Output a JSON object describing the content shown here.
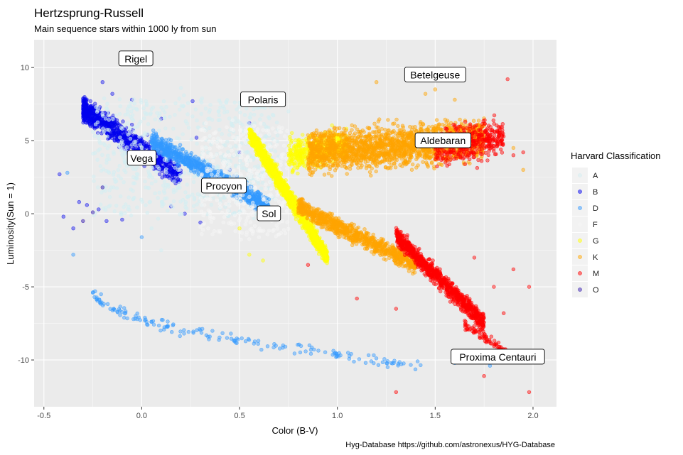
{
  "chart_data": {
    "type": "scatter",
    "title": "Hertzsprung-Russell",
    "subtitle": "Main sequence stars within 1000 ly from sun",
    "xlabel": "Color (B-V)",
    "ylabel": "Luminosity(Sun = 1)",
    "caption": "Hyg-Database https://github.com/astronexus/HYG-Database",
    "xlim": [
      -0.55,
      2.12
    ],
    "ylim": [
      -13.2,
      11.9
    ],
    "x_ticks": [
      -0.5,
      0.0,
      0.5,
      1.0,
      1.5,
      2.0
    ],
    "x_tick_labels": [
      "-0.5",
      "0.0",
      "0.5",
      "1.0",
      "1.5",
      "2.0"
    ],
    "y_ticks": [
      -10,
      -5,
      0,
      5,
      10
    ],
    "y_tick_labels": [
      "-10",
      "-5",
      "0",
      "5",
      "10"
    ],
    "grid": true,
    "legend_position": "right",
    "legend": {
      "title": "Harvard Classification",
      "items": [
        {
          "label": "A",
          "color": "#d4eef2"
        },
        {
          "label": "B",
          "color": "#0000ee"
        },
        {
          "label": "D",
          "color": "#3399ff"
        },
        {
          "label": "F",
          "color": "#f5f5f5"
        },
        {
          "label": "G",
          "color": "#ffff00"
        },
        {
          "label": "K",
          "color": "#ffa500"
        },
        {
          "label": "M",
          "color": "#ff0000"
        },
        {
          "label": "O",
          "color": "#3a1fb0"
        }
      ]
    },
    "annotations": [
      {
        "label": "Rigel",
        "x": -0.03,
        "y": 10.6
      },
      {
        "label": "Betelgeuse",
        "x": 1.5,
        "y": 9.5
      },
      {
        "label": "Polaris",
        "x": 0.62,
        "y": 7.8
      },
      {
        "label": "Aldebaran",
        "x": 1.54,
        "y": 5.0
      },
      {
        "label": "Vega",
        "x": 0.0,
        "y": 3.8
      },
      {
        "label": "Procyon",
        "x": 0.42,
        "y": 1.9
      },
      {
        "label": "Sol",
        "x": 0.65,
        "y": 0.0
      },
      {
        "label": "Proxima Centauri",
        "x": 1.82,
        "y": -9.8
      }
    ],
    "series": [
      {
        "name": "B",
        "color": "#0000ee",
        "alpha": 0.4,
        "clusters": [
          {
            "x": [
              -0.3,
              0.2
            ],
            "y": [
              1.0,
              8.8
            ],
            "count": 900,
            "profile": "upper-left-diagonal"
          }
        ],
        "points": [
          [
            -0.32,
            0.8
          ],
          [
            -0.35,
            -1.0
          ],
          [
            -0.4,
            -0.2
          ],
          [
            -0.28,
            0.6
          ],
          [
            -0.22,
            0.3
          ],
          [
            -0.18,
            -0.5
          ],
          [
            -0.1,
            -0.4
          ],
          [
            0.15,
            0.5
          ],
          [
            0.22,
            0.0
          ],
          [
            0.3,
            -0.6
          ],
          [
            0.28,
            5.2
          ],
          [
            0.26,
            7.7
          ],
          [
            0.55,
            6.2
          ],
          [
            0.5,
            4.2
          ],
          [
            0.45,
            3.0
          ],
          [
            -0.42,
            2.7
          ],
          [
            -0.2,
            9.0
          ],
          [
            -0.15,
            8.2
          ],
          [
            -0.05,
            7.8
          ],
          [
            0.1,
            6.5
          ]
        ]
      },
      {
        "name": "A",
        "color": "#d4eef2",
        "alpha": 0.55,
        "clusters": [
          {
            "x": [
              -0.25,
              0.7
            ],
            "y": [
              0.0,
              7.8
            ],
            "count": 700,
            "profile": "band"
          }
        ],
        "points": [
          [
            0.2,
            8.6
          ],
          [
            0.5,
            7.6
          ],
          [
            0.6,
            7.3
          ],
          [
            0.75,
            7.0
          ],
          [
            0.05,
            -1.0
          ],
          [
            0.1,
            -2.5
          ]
        ]
      },
      {
        "name": "D",
        "color": "#3399ff",
        "alpha": 0.45,
        "clusters": [
          {
            "x": [
              0.05,
              0.65
            ],
            "y": [
              0.5,
              5.0
            ],
            "count": 900,
            "profile": "main-sequence"
          },
          {
            "x": [
              -0.25,
              1.45
            ],
            "y": [
              -10.4,
              -5.2
            ],
            "count": 170,
            "profile": "white-dwarf-strip"
          }
        ],
        "points": [
          [
            -0.35,
            -2.8
          ],
          [
            -0.38,
            2.8
          ],
          [
            0.0,
            -1.6
          ],
          [
            1.6,
            -10.2
          ],
          [
            1.41,
            -10.1
          ],
          [
            1.78,
            -10.4
          ]
        ]
      },
      {
        "name": "F",
        "color": "#f5f5f5",
        "alpha": 0.5,
        "clusters": [
          {
            "x": [
              0.3,
              0.75
            ],
            "y": [
              -1.5,
              6.0
            ],
            "count": 400,
            "profile": "band"
          }
        ],
        "points": []
      },
      {
        "name": "G",
        "color": "#ffff00",
        "alpha": 0.45,
        "clusters": [
          {
            "x": [
              0.55,
              0.95
            ],
            "y": [
              -3.0,
              5.5
            ],
            "count": 1300,
            "profile": "main-sequence"
          },
          {
            "x": [
              0.75,
              1.05
            ],
            "y": [
              2.0,
              6.5
            ],
            "count": 500,
            "profile": "giant-branch"
          }
        ],
        "points": [
          [
            0.55,
            -2.8
          ],
          [
            0.62,
            -3.2
          ],
          [
            0.5,
            -1.0
          ]
        ]
      },
      {
        "name": "K",
        "color": "#ffa500",
        "alpha": 0.45,
        "clusters": [
          {
            "x": [
              0.85,
              1.75
            ],
            "y": [
              1.5,
              7.5
            ],
            "count": 2000,
            "profile": "giant-branch"
          },
          {
            "x": [
              0.8,
              1.4
            ],
            "y": [
              -3.5,
              0.5
            ],
            "count": 900,
            "profile": "main-sequence"
          }
        ],
        "points": [
          [
            1.9,
            4.5
          ],
          [
            1.95,
            3.0
          ],
          [
            1.5,
            8.5
          ],
          [
            1.6,
            7.8
          ],
          [
            1.45,
            8.2
          ],
          [
            1.55,
            6.0
          ],
          [
            1.2,
            9.0
          ]
        ]
      },
      {
        "name": "M",
        "color": "#ff0000",
        "alpha": 0.45,
        "clusters": [
          {
            "x": [
              1.3,
              1.75
            ],
            "y": [
              -7.5,
              -1.5
            ],
            "count": 900,
            "profile": "main-sequence"
          },
          {
            "x": [
              1.5,
              1.85
            ],
            "y": [
              2.0,
              7.5
            ],
            "count": 400,
            "profile": "giant-branch"
          },
          {
            "x": [
              1.65,
              1.9
            ],
            "y": [
              -9.8,
              -7.5
            ],
            "count": 100,
            "profile": "tail"
          }
        ],
        "points": [
          [
            1.87,
            9.2
          ],
          [
            1.3,
            -12.2
          ],
          [
            1.98,
            -12.2
          ],
          [
            1.75,
            -11.1
          ],
          [
            1.98,
            -5.0
          ],
          [
            1.8,
            -5.0
          ],
          [
            1.3,
            -6.5
          ],
          [
            1.85,
            -6.8
          ],
          [
            1.9,
            4.0
          ],
          [
            1.95,
            4.2
          ],
          [
            1.9,
            -3.8
          ],
          [
            0.85,
            -3.5
          ],
          [
            1.1,
            -5.8
          ],
          [
            1.7,
            -3.0
          ]
        ]
      },
      {
        "name": "O",
        "color": "#3a1fb0",
        "alpha": 0.5,
        "clusters": [],
        "points": [
          [
            -0.3,
            -0.5
          ],
          [
            -0.25,
            0.1
          ],
          [
            -0.2,
            1.8
          ]
        ]
      }
    ]
  }
}
